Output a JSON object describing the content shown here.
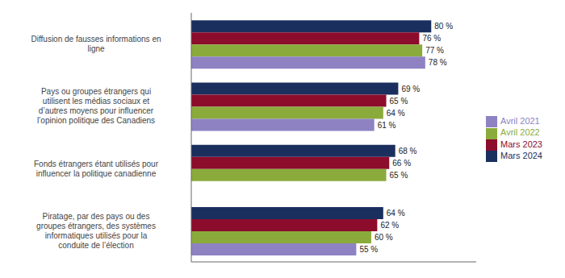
{
  "chart_data": {
    "type": "bar",
    "orientation": "horizontal",
    "categories": [
      "Diffusion de fausses informations en\nligne",
      "Pays ou groupes étrangers qui\nutilisent les médias sociaux et\nd’autres moyens pour influencer\nl’opinion politique des Canadiens",
      "Fonds étrangers étant utilisés pour\ninfluencer la politique canadienne",
      "Piratage, par des pays ou des\ngroupes étrangers, des systèmes\ninformatiques utilisés pour la\nconduite de l’élection"
    ],
    "series": [
      {
        "name": "Mars 2024",
        "color": "#1b2f5e",
        "values": [
          80,
          69,
          68,
          64
        ],
        "value_labels": [
          "80 %",
          "69 %",
          "68 %",
          "64 %"
        ]
      },
      {
        "name": "Mars 2023",
        "color": "#8c0c2c",
        "values": [
          76,
          65,
          66,
          62
        ],
        "value_labels": [
          "76 %",
          "65 %",
          "66 %",
          "62 %"
        ]
      },
      {
        "name": "Avril 2022",
        "color": "#8aab3c",
        "values": [
          77,
          64,
          65,
          60
        ],
        "value_labels": [
          "77 %",
          "64 %",
          "65 %",
          "60 %"
        ]
      },
      {
        "name": "Avril 2021",
        "color": "#8e82c3",
        "values": [
          78,
          61,
          null,
          55
        ],
        "value_labels": [
          "78 %",
          "61 %",
          null,
          "55 %"
        ]
      }
    ],
    "xlim": [
      0,
      95
    ],
    "xticks": [],
    "data_labels": true,
    "tick_labels": "y",
    "grid": false,
    "legend": "right"
  }
}
